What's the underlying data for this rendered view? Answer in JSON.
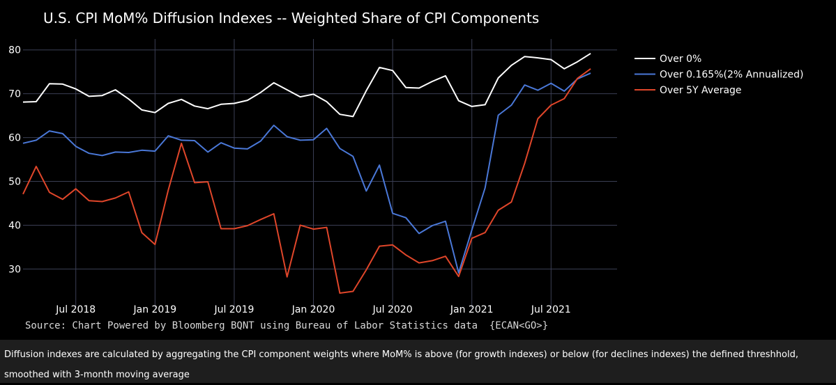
{
  "colors": {
    "background": "#000000",
    "grid": "#3b3f55",
    "caption_background": "#1e1e1e"
  },
  "caption": "Diffusion indexes are calculated by aggregating the CPI component weights where MoM% is above (for growth indexes) or below (for declines indexes) the defined threshhold, smoothed with 3-month moving average",
  "chart_data": {
    "type": "line",
    "title": "U.S. CPI MoM% Diffusion Indexes -- Weighted Share of CPI Components",
    "source": "Source: Chart Powered by Bloomberg BQNT using Bureau of Labor Statistics data  {ECAN<GO>}",
    "xlabel": "",
    "ylabel": "",
    "x": [
      "2018-03",
      "2018-04",
      "2018-05",
      "2018-06",
      "2018-07",
      "2018-08",
      "2018-09",
      "2018-10",
      "2018-11",
      "2018-12",
      "2019-01",
      "2019-02",
      "2019-03",
      "2019-04",
      "2019-05",
      "2019-06",
      "2019-07",
      "2019-08",
      "2019-09",
      "2019-10",
      "2019-11",
      "2019-12",
      "2020-01",
      "2020-02",
      "2020-03",
      "2020-04",
      "2020-05",
      "2020-06",
      "2020-07",
      "2020-08",
      "2020-09",
      "2020-10",
      "2020-11",
      "2020-12",
      "2021-01",
      "2021-02",
      "2021-03",
      "2021-04",
      "2021-05",
      "2021-06",
      "2021-07",
      "2021-08",
      "2021-09",
      "2021-10",
      "2021-11",
      "2021-12"
    ],
    "x_range": [
      "2018-03",
      "2021-12"
    ],
    "x_ticks": [
      {
        "date": "2018-07",
        "label": "Jul 2018"
      },
      {
        "date": "2019-01",
        "label": "Jan 2019"
      },
      {
        "date": "2019-07",
        "label": "Jul 2019"
      },
      {
        "date": "2020-01",
        "label": "Jan 2020"
      },
      {
        "date": "2020-07",
        "label": "Jul 2020"
      },
      {
        "date": "2021-01",
        "label": "Jan 2021"
      },
      {
        "date": "2021-07",
        "label": "Jul 2021"
      }
    ],
    "y_ticks": [
      30,
      40,
      50,
      60,
      70,
      80
    ],
    "ylim": [
      21,
      82.5
    ],
    "grid": true,
    "legend_position": "top-right",
    "series": [
      {
        "name": "Over 0%",
        "color": "#ffffff",
        "values": [
          68.1,
          68.2,
          72.3,
          72.2,
          71.1,
          69.4,
          69.6,
          70.9,
          68.8,
          66.3,
          65.7,
          67.8,
          68.7,
          67.2,
          66.6,
          67.6,
          67.8,
          68.5,
          70.3,
          72.5,
          70.9,
          69.3,
          69.9,
          68.2,
          65.3,
          64.8,
          70.7,
          76.0,
          75.3,
          71.4,
          71.3,
          72.8,
          74.1,
          68.4,
          67.1,
          67.5,
          73.6,
          76.5,
          78.5,
          78.2,
          77.8,
          75.7,
          77.3,
          79.2,
          null,
          null
        ]
      },
      {
        "name": "Over 0.165%(2% Annualized)",
        "color": "#4a78d8",
        "values": [
          58.7,
          59.4,
          61.5,
          60.9,
          58.0,
          56.4,
          55.9,
          56.7,
          56.6,
          57.1,
          56.9,
          60.4,
          59.4,
          59.3,
          56.7,
          58.8,
          57.6,
          57.4,
          59.2,
          62.8,
          60.2,
          59.4,
          59.5,
          62.1,
          57.5,
          55.7,
          47.8,
          53.7,
          42.7,
          41.7,
          38.1,
          39.9,
          40.9,
          29.1,
          38.9,
          48.5,
          65.1,
          67.4,
          72.0,
          70.8,
          72.4,
          70.6,
          73.4,
          74.7,
          null,
          null
        ]
      },
      {
        "name": "Over 5Y Average",
        "color": "#e0462a",
        "values": [
          47.1,
          53.4,
          47.5,
          45.9,
          48.3,
          45.6,
          45.4,
          46.2,
          47.6,
          38.3,
          35.6,
          48.0,
          58.7,
          49.7,
          49.9,
          39.2,
          39.2,
          39.9,
          41.3,
          42.6,
          28.2,
          40.0,
          39.1,
          39.5,
          24.5,
          24.9,
          29.8,
          35.2,
          35.5,
          33.2,
          31.4,
          31.9,
          32.9,
          28.3,
          37.0,
          38.3,
          43.4,
          45.3,
          54.1,
          64.3,
          67.4,
          68.9,
          73.5,
          75.7,
          null,
          null
        ]
      }
    ]
  }
}
